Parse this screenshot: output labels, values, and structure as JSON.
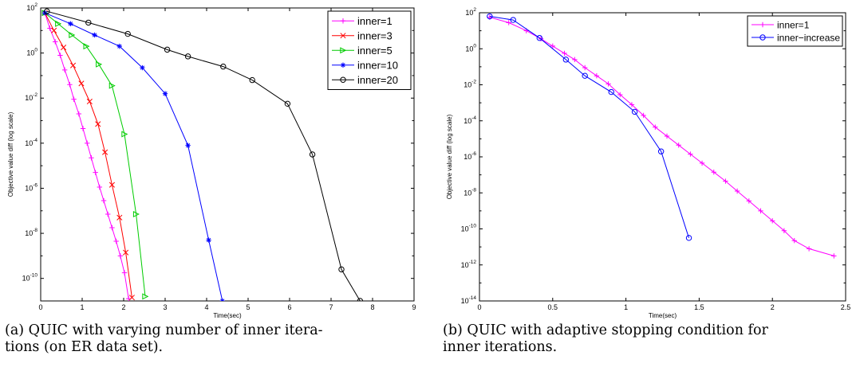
{
  "captions": {
    "a_line1": "(a) QUIC with varying number of inner itera-",
    "a_line2": "tions (on ER data set).",
    "b_line1": "(b) QUIC with adaptive stopping condition for",
    "b_line2": "inner iterations."
  },
  "chart_data": [
    {
      "type": "line",
      "title": "",
      "xlabel": "Time(sec)",
      "ylabel": "Objective value diff (log scale)",
      "yscale": "log",
      "xlim": [
        0,
        9
      ],
      "ylim_exp": [
        -11,
        2
      ],
      "xticks": [
        0,
        1,
        2,
        3,
        4,
        5,
        6,
        7,
        8,
        9
      ],
      "yticks_exp": [
        -10,
        -8,
        -6,
        -4,
        -2,
        0,
        2
      ],
      "legend_location": "top-right",
      "series": [
        {
          "name": "inner=1",
          "color": "#ff00ff",
          "marker": "plus",
          "x": [
            0.1,
            0.22,
            0.35,
            0.47,
            0.58,
            0.7,
            0.8,
            0.92,
            1.02,
            1.12,
            1.22,
            1.32,
            1.42,
            1.52,
            1.62,
            1.72,
            1.82,
            1.92,
            2.02,
            2.12
          ],
          "y_exp": [
            1.78,
            1.1,
            0.5,
            -0.1,
            -0.75,
            -1.4,
            -2.05,
            -2.7,
            -3.35,
            -4.0,
            -4.65,
            -5.3,
            -5.95,
            -6.55,
            -7.15,
            -7.75,
            -8.35,
            -9.0,
            -9.75,
            -10.9
          ]
        },
        {
          "name": "inner=3",
          "color": "#ff0000",
          "marker": "x",
          "x": [
            0.1,
            0.32,
            0.55,
            0.78,
            0.98,
            1.18,
            1.38,
            1.55,
            1.72,
            1.9,
            2.05,
            2.2
          ],
          "y_exp": [
            1.78,
            1.0,
            0.25,
            -0.55,
            -1.35,
            -2.15,
            -3.15,
            -4.4,
            -5.85,
            -7.3,
            -8.85,
            -10.85
          ]
        },
        {
          "name": "inner=5",
          "color": "#00cc00",
          "marker": "triangle",
          "x": [
            0.1,
            0.42,
            0.75,
            1.1,
            1.4,
            1.72,
            2.02,
            2.3,
            2.52
          ],
          "y_exp": [
            1.78,
            1.3,
            0.8,
            0.3,
            -0.5,
            -1.45,
            -3.6,
            -7.15,
            -10.8
          ]
        },
        {
          "name": "inner=10",
          "color": "#0000ff",
          "marker": "star",
          "x": [
            0.1,
            0.72,
            1.3,
            1.9,
            2.45,
            3.0,
            3.55,
            4.05,
            4.38
          ],
          "y_exp": [
            1.78,
            1.3,
            0.8,
            0.3,
            -0.65,
            -1.8,
            -4.1,
            -8.3,
            -11.0
          ]
        },
        {
          "name": "inner=20",
          "color": "#000000",
          "marker": "circle",
          "x": [
            0.15,
            1.15,
            2.1,
            3.05,
            3.55,
            4.4,
            5.1,
            5.95,
            6.55,
            7.25,
            7.7
          ],
          "y_exp": [
            1.85,
            1.35,
            0.85,
            0.15,
            -0.15,
            -0.6,
            -1.2,
            -2.25,
            -4.5,
            -9.6,
            -11.0
          ]
        }
      ]
    },
    {
      "type": "line",
      "title": "",
      "xlabel": "Time(sec)",
      "ylabel": "Objective value diff (log scale)",
      "yscale": "log",
      "xlim": [
        0,
        2.5
      ],
      "ylim_exp": [
        -14,
        2
      ],
      "xticks": [
        0,
        0.5,
        1,
        1.5,
        2,
        2.5
      ],
      "yticks_exp": [
        -14,
        -12,
        -10,
        -8,
        -6,
        -4,
        -2,
        0,
        2
      ],
      "legend_location": "top-right",
      "series": [
        {
          "name": "inner=1",
          "color": "#ff00ff",
          "marker": "plus",
          "x": [
            0.07,
            0.2,
            0.32,
            0.42,
            0.5,
            0.58,
            0.65,
            0.72,
            0.8,
            0.88,
            0.96,
            1.04,
            1.12,
            1.2,
            1.28,
            1.36,
            1.44,
            1.52,
            1.6,
            1.68,
            1.76,
            1.84,
            1.92,
            2.0,
            2.08,
            2.15,
            2.25,
            2.42
          ],
          "y_exp": [
            1.75,
            1.45,
            1.0,
            0.55,
            0.15,
            -0.25,
            -0.6,
            -1.05,
            -1.5,
            -1.95,
            -2.55,
            -3.1,
            -3.7,
            -4.35,
            -4.85,
            -5.35,
            -5.85,
            -6.35,
            -6.85,
            -7.35,
            -7.9,
            -8.45,
            -9.0,
            -9.55,
            -10.1,
            -10.65,
            -11.1,
            -11.5
          ]
        },
        {
          "name": "inner−increase",
          "color": "#0000ff",
          "marker": "circle",
          "x": [
            0.07,
            0.23,
            0.41,
            0.59,
            0.72,
            0.9,
            1.06,
            1.24,
            1.43
          ],
          "y_exp": [
            1.8,
            1.6,
            0.6,
            -0.6,
            -1.5,
            -2.4,
            -3.5,
            -5.7,
            -10.5
          ]
        }
      ]
    }
  ]
}
